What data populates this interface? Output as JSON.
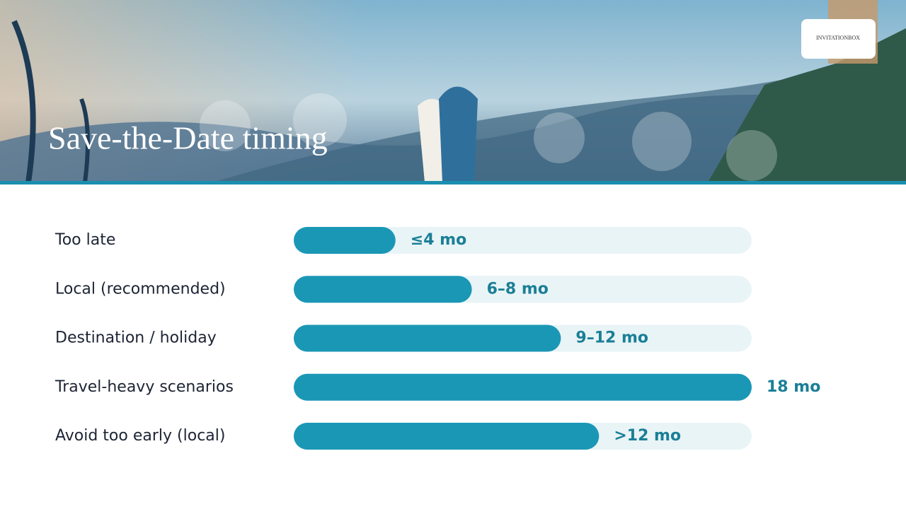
{
  "logo": "INVITATIONBOX",
  "chart_data": {
    "type": "bar",
    "orientation": "horizontal",
    "title": "Save-the-Date timing",
    "categories": [
      "Too late",
      "Local (recommended)",
      "Destination / holiday",
      "Travel-heavy scenarios",
      "Avoid too early (local)"
    ],
    "values": [
      4,
      7,
      10.5,
      18,
      12
    ],
    "value_labels": [
      "≤4 mo",
      "6–8 mo",
      "9–12 mo",
      "18 mo",
      ">12 mo"
    ],
    "xlim": [
      0,
      18
    ],
    "color": "#1b97b6",
    "track_color": "#e9f4f7",
    "label_color": "#1a7f96"
  }
}
